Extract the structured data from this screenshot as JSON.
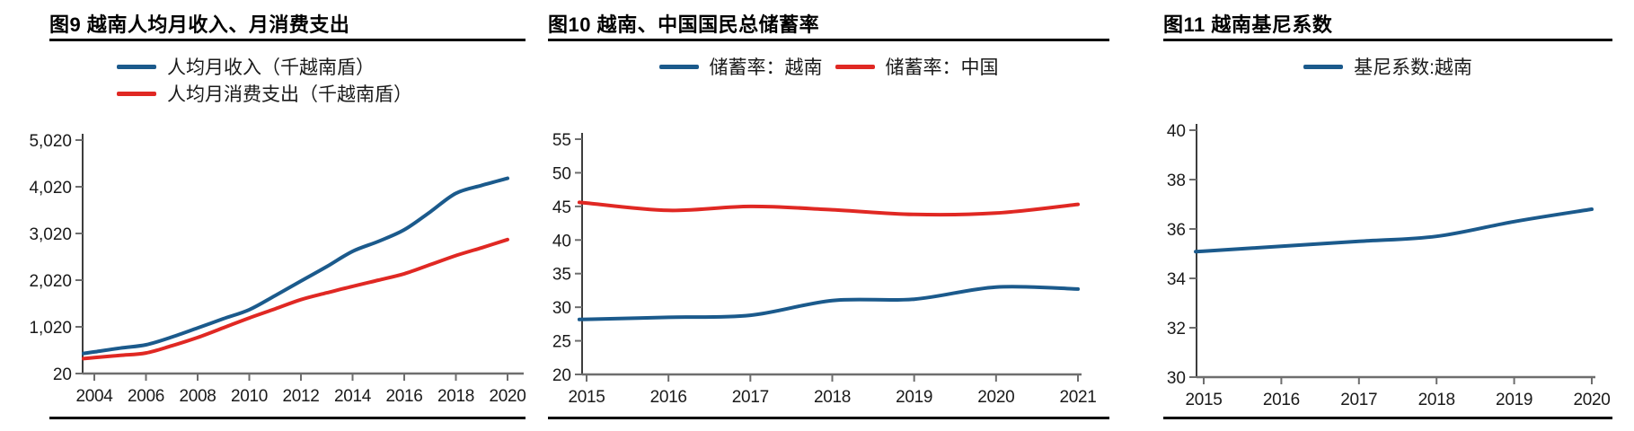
{
  "palette": {
    "blue": "#1b5a8c",
    "red": "#e02823",
    "axis": "#6e6e6e",
    "axis_dark": "#3d3d3d",
    "rule": "#000000"
  },
  "figures": [
    {
      "id": "figure-9",
      "title": "图9 越南人均月收入、月消费支出",
      "legend_layout": "stacked",
      "chart_data": {
        "type": "line",
        "title": "越南人均月收入、月消费支出",
        "xlabel": "",
        "ylabel": "",
        "grid": false,
        "legend_position": "top-left",
        "x": [
          2004,
          2005,
          2006,
          2007,
          2008,
          2009,
          2010,
          2011,
          2012,
          2013,
          2014,
          2015,
          2016,
          2017,
          2018,
          2019,
          2020
        ],
        "xticks": [
          2004,
          2006,
          2008,
          2010,
          2012,
          2014,
          2016,
          2018,
          2020
        ],
        "ylim": [
          20,
          5020
        ],
        "yticks": [
          20,
          1020,
          2020,
          3020,
          4020,
          5020
        ],
        "ytick_labels": [
          "20",
          "1,020",
          "2,020",
          "3,020",
          "4,020",
          "5,020"
        ],
        "series": [
          {
            "name": "人均月收入（千越南盾）",
            "color": "#1b5a8c",
            "values": [
              484,
              565,
              636,
              800,
              995,
              1195,
              1387,
              1690,
              2000,
              2310,
              2637,
              2850,
              3098,
              3480,
              3880,
              4050,
              4200
            ]
          },
          {
            "name": "人均月消费支出（千越南盾）",
            "color": "#e02823",
            "values": [
              360,
              410,
              460,
              615,
              792,
              1000,
              1211,
              1405,
              1603,
              1748,
              1888,
              2020,
              2157,
              2350,
              2546,
              2715,
              2890
            ]
          }
        ]
      }
    },
    {
      "id": "figure-10",
      "title": "图10 越南、中国国民总储蓄率",
      "legend_layout": "inline",
      "chart_data": {
        "type": "line",
        "title": "越南、中国国民总储蓄率",
        "xlabel": "",
        "ylabel": "",
        "grid": false,
        "legend_position": "top-center",
        "x": [
          2015,
          2016,
          2017,
          2018,
          2019,
          2020,
          2021
        ],
        "xticks": [
          2015,
          2016,
          2017,
          2018,
          2019,
          2020,
          2021
        ],
        "ylim": [
          20,
          55
        ],
        "yticks": [
          20,
          25,
          30,
          35,
          40,
          45,
          50,
          55
        ],
        "series": [
          {
            "name": "储蓄率：越南",
            "color": "#1b5a8c",
            "values": [
              28.2,
              28.5,
              28.8,
              31.0,
              31.2,
              33.0,
              32.7
            ]
          },
          {
            "name": "储蓄率：中国",
            "color": "#e02823",
            "values": [
              45.5,
              44.4,
              45.0,
              44.5,
              43.8,
              44.0,
              45.3
            ]
          }
        ]
      }
    },
    {
      "id": "figure-11",
      "title": "图11 越南基尼系数",
      "legend_layout": "inline",
      "chart_data": {
        "type": "line",
        "title": "越南基尼系数",
        "xlabel": "",
        "ylabel": "",
        "grid": false,
        "legend_position": "top-center",
        "x": [
          2015,
          2016,
          2017,
          2018,
          2019,
          2020
        ],
        "xticks": [
          2015,
          2016,
          2017,
          2018,
          2019,
          2020
        ],
        "ylim": [
          30,
          40
        ],
        "yticks": [
          30,
          32,
          34,
          36,
          38,
          40
        ],
        "series": [
          {
            "name": "基尼系数:越南",
            "color": "#1b5a8c",
            "values": [
              35.1,
              35.3,
              35.5,
              35.7,
              36.3,
              36.8
            ]
          }
        ]
      }
    }
  ]
}
